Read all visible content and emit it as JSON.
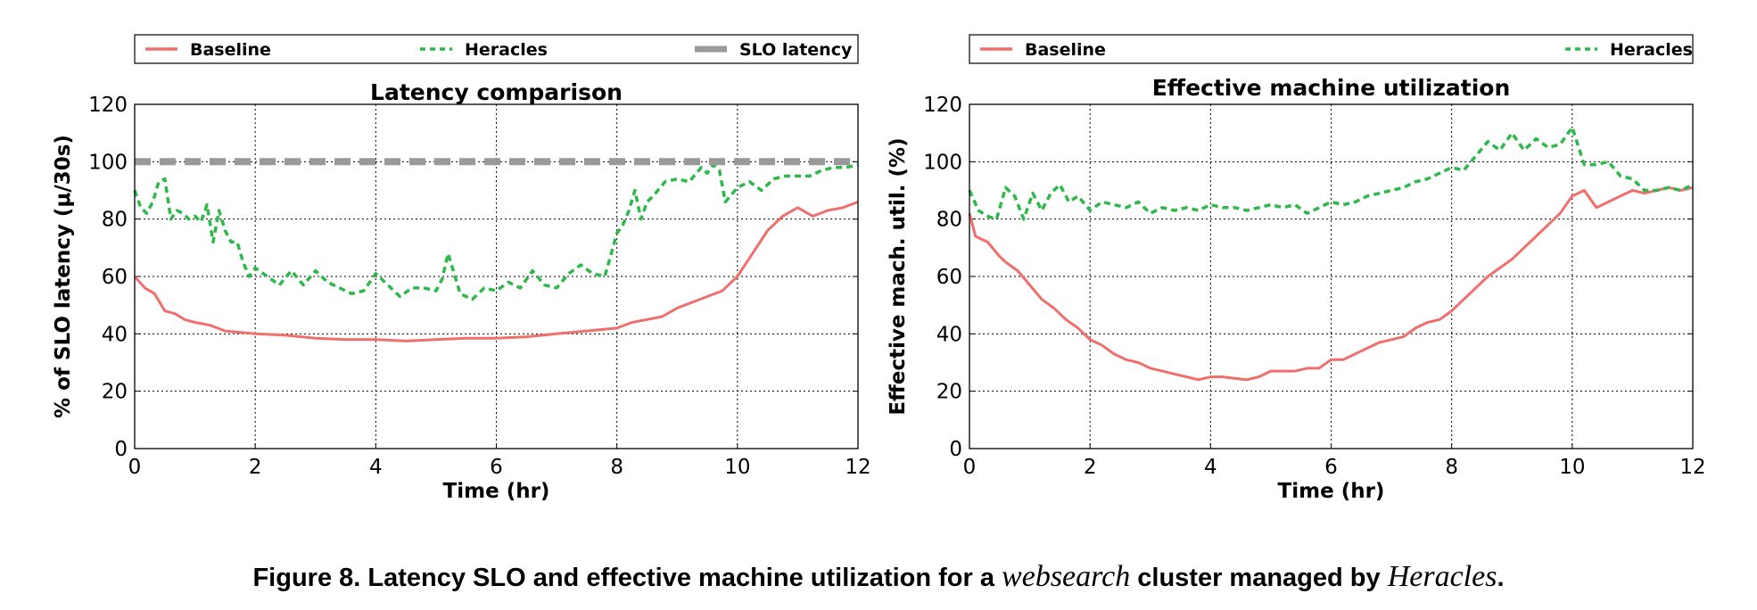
{
  "caption": {
    "prefix": "Figure 8. Latency SLO and effective machine utilization for a",
    "emph1": "websearch",
    "middle": "cluster managed by",
    "emph2": "Heracles",
    "suffix": "."
  },
  "colors": {
    "baseline": "#ef6f6c",
    "heracles": "#2db84a",
    "slo": "#999999",
    "grid": "#000000"
  },
  "chart_data": [
    {
      "type": "line",
      "title": "Latency comparison",
      "xlabel": "Time (hr)",
      "ylabel": "% of SLO latency (μ/30s)",
      "xlim": [
        0,
        12
      ],
      "ylim": [
        0,
        120
      ],
      "xticks": [
        0,
        2,
        4,
        6,
        8,
        10,
        12
      ],
      "yticks": [
        0,
        20,
        40,
        60,
        80,
        100,
        120
      ],
      "grid": true,
      "legend_position": "top, above plot",
      "series": [
        {
          "name": "Baseline",
          "style": "solid",
          "color": "#ef6f6c",
          "x": [
            0,
            0.17,
            0.33,
            0.5,
            0.67,
            0.83,
            1,
            1.25,
            1.5,
            1.75,
            2,
            2.5,
            3,
            3.5,
            4,
            4.5,
            5,
            5.5,
            6,
            6.5,
            7,
            7.5,
            8,
            8.25,
            8.5,
            8.75,
            9,
            9.25,
            9.5,
            9.75,
            10,
            10.25,
            10.5,
            10.75,
            11,
            11.25,
            11.5,
            11.75,
            12
          ],
          "y": [
            60,
            56,
            54,
            48,
            47,
            45,
            44,
            43,
            41,
            40.5,
            40,
            39.5,
            38.5,
            38,
            38,
            37.5,
            38,
            38.5,
            38.5,
            39,
            40,
            41,
            42,
            44,
            45,
            46,
            49,
            51,
            53,
            55,
            60,
            68,
            76,
            81,
            84,
            81,
            83,
            84,
            86
          ]
        },
        {
          "name": "Heracles",
          "style": "dashed",
          "color": "#2db84a",
          "x": [
            0,
            0.1,
            0.2,
            0.3,
            0.4,
            0.5,
            0.6,
            0.7,
            0.8,
            0.9,
            1,
            1.1,
            1.2,
            1.3,
            1.4,
            1.5,
            1.6,
            1.7,
            1.8,
            1.9,
            2,
            2.2,
            2.4,
            2.6,
            2.8,
            3,
            3.2,
            3.4,
            3.6,
            3.8,
            4,
            4.2,
            4.4,
            4.6,
            4.8,
            5,
            5.1,
            5.2,
            5.4,
            5.6,
            5.8,
            6,
            6.2,
            6.4,
            6.6,
            6.8,
            7,
            7.2,
            7.4,
            7.6,
            7.8,
            8,
            8.1,
            8.2,
            8.3,
            8.4,
            8.5,
            8.6,
            8.8,
            9,
            9.2,
            9.4,
            9.5,
            9.6,
            9.7,
            9.8,
            10,
            10.2,
            10.4,
            10.6,
            10.8,
            11,
            11.2,
            11.4,
            11.6,
            11.8,
            12
          ],
          "y": [
            90,
            84,
            82,
            86,
            93,
            94,
            80,
            83,
            82,
            80,
            81,
            79,
            85,
            72,
            83,
            76,
            72,
            72,
            65,
            60,
            63,
            60,
            57,
            62,
            57,
            62,
            58,
            56,
            54,
            55,
            61,
            57,
            53,
            56,
            56,
            55,
            59,
            68,
            54,
            52,
            56,
            55,
            58,
            56,
            62,
            57,
            56,
            61,
            64,
            61,
            60,
            75,
            78,
            83,
            90,
            80,
            86,
            88,
            93,
            94,
            93,
            98,
            96,
            99,
            97,
            86,
            91,
            93,
            90,
            94,
            95,
            95,
            95,
            97,
            98,
            98,
            99
          ]
        },
        {
          "name": "SLO latency",
          "style": "thick dashed",
          "color": "#999999",
          "x": [
            0,
            12
          ],
          "y": [
            100,
            100
          ]
        }
      ]
    },
    {
      "type": "line",
      "title": "Effective machine utilization",
      "xlabel": "Time (hr)",
      "ylabel": "Effective mach. util. (%)",
      "xlim": [
        0,
        12
      ],
      "ylim": [
        0,
        120
      ],
      "xticks": [
        0,
        2,
        4,
        6,
        8,
        10,
        12
      ],
      "yticks": [
        0,
        20,
        40,
        60,
        80,
        100,
        120
      ],
      "grid": true,
      "legend_position": "top, above plot",
      "series": [
        {
          "name": "Baseline",
          "style": "solid",
          "color": "#ef6f6c",
          "x": [
            0,
            0.1,
            0.3,
            0.5,
            0.6,
            0.8,
            1,
            1.2,
            1.4,
            1.6,
            1.8,
            2,
            2.2,
            2.4,
            2.6,
            2.8,
            3,
            3.2,
            3.4,
            3.6,
            3.8,
            4,
            4.2,
            4.4,
            4.6,
            4.8,
            5,
            5.2,
            5.4,
            5.6,
            5.8,
            6,
            6.2,
            6.4,
            6.6,
            6.8,
            7,
            7.2,
            7.4,
            7.6,
            7.8,
            8,
            8.2,
            8.4,
            8.6,
            8.8,
            9,
            9.2,
            9.4,
            9.6,
            9.8,
            10,
            10.2,
            10.4,
            10.6,
            10.8,
            11,
            11.2,
            11.4,
            11.6,
            11.8,
            12
          ],
          "y": [
            82,
            74,
            72,
            67,
            65,
            62,
            57,
            52,
            49,
            45,
            42,
            38,
            36,
            33,
            31,
            30,
            28,
            27,
            26,
            25,
            24,
            25,
            25,
            24.5,
            24,
            25,
            27,
            27,
            27,
            28,
            28,
            31,
            31,
            33,
            35,
            37,
            38,
            39,
            42,
            44,
            45,
            48,
            52,
            56,
            60,
            63,
            66,
            70,
            74,
            78,
            82,
            88,
            90,
            84,
            86,
            88,
            90,
            89,
            90,
            91,
            90,
            91
          ]
        },
        {
          "name": "Heracles",
          "style": "dashed",
          "color": "#2db84a",
          "x": [
            0,
            0.15,
            0.3,
            0.45,
            0.6,
            0.75,
            0.9,
            1.05,
            1.2,
            1.35,
            1.5,
            1.65,
            1.8,
            2,
            2.2,
            2.4,
            2.6,
            2.8,
            3,
            3.2,
            3.4,
            3.6,
            3.8,
            4,
            4.2,
            4.4,
            4.6,
            4.8,
            5,
            5.2,
            5.4,
            5.6,
            5.8,
            6,
            6.2,
            6.4,
            6.6,
            6.8,
            7,
            7.2,
            7.4,
            7.6,
            7.8,
            8,
            8.2,
            8.4,
            8.6,
            8.8,
            9,
            9.2,
            9.4,
            9.6,
            9.8,
            10,
            10.2,
            10.4,
            10.6,
            10.8,
            11,
            11.2,
            11.4,
            11.6,
            11.8,
            12
          ],
          "y": [
            90,
            83,
            81,
            80,
            91,
            88,
            80,
            89,
            83,
            89,
            92,
            86,
            88,
            83,
            86,
            85,
            84,
            86,
            82,
            84,
            83,
            84,
            83,
            85,
            84,
            84,
            83,
            84,
            85,
            84,
            85,
            82,
            84,
            86,
            85,
            86,
            88,
            89,
            90,
            91,
            93,
            94,
            96,
            98,
            97,
            102,
            107,
            104,
            110,
            104,
            108,
            105,
            106,
            112,
            99,
            99,
            100,
            95,
            94,
            90,
            90,
            91,
            90,
            92
          ]
        }
      ]
    }
  ]
}
